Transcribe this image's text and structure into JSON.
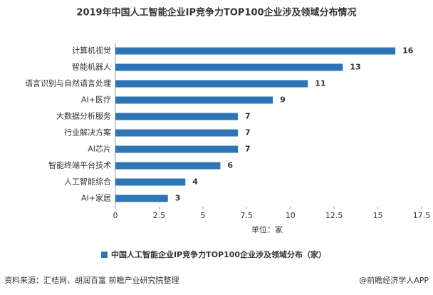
{
  "chart_data": {
    "type": "bar",
    "orientation": "horizontal",
    "title": "2019年中国人工智能企业IP竞争力TOP100企业涉及领域分布情况",
    "categories": [
      "计算机视觉",
      "智能机器人",
      "语言识别与自然语言处理",
      "AI+医疗",
      "大数据分析服务",
      "行业解决方案",
      "AI芯片",
      "智能终端平台技术",
      "人工智能综合",
      "AI+家居"
    ],
    "series": [
      {
        "name": "中国人工智能企业IP竞争力TOP100企业涉及领域分布（家）",
        "color": "#2e75b6",
        "values": [
          16,
          13,
          11,
          9,
          7,
          7,
          7,
          6,
          4,
          3
        ]
      }
    ],
    "xlim": [
      0,
      17.5
    ],
    "xticks": [
      0,
      2.5,
      5,
      7.5,
      10,
      12.5,
      15,
      17.5
    ],
    "x_label": "单位：家",
    "legend": "bottom"
  },
  "source": "资料来源：汇桔网、胡润百富 前瞻产业研究院整理",
  "credit": "@前瞻经济学人APP"
}
